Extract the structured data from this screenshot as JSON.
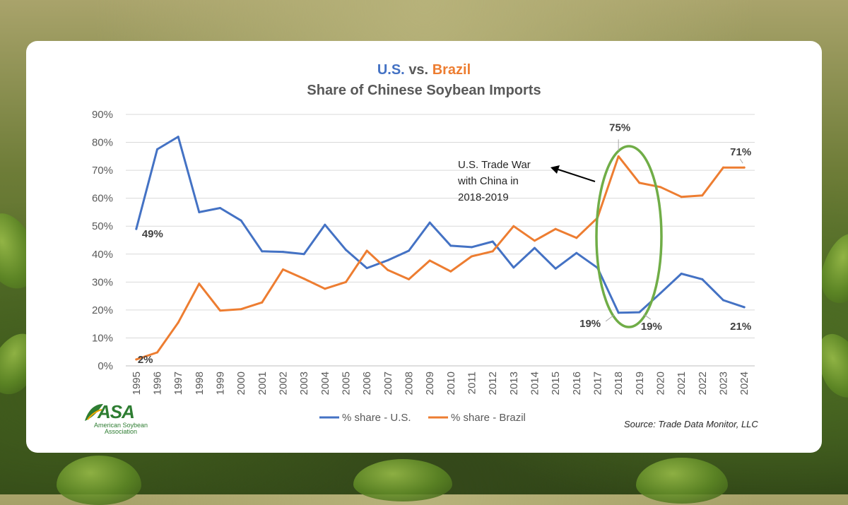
{
  "title_prefix": "U.S.",
  "title_vs": "vs.",
  "title_suffix": "Brazil",
  "subtitle": "Share of Chinese Soybean Imports",
  "colors": {
    "us": "#4472c4",
    "brazil": "#ed7d31",
    "highlight": "#70ad47",
    "text": "#595959"
  },
  "chart_data": {
    "type": "line",
    "title": "U.S. vs. Brazil",
    "subtitle": "Share of Chinese Soybean Imports",
    "x": [
      "1995",
      "1996",
      "1997",
      "1998",
      "1999",
      "2000",
      "2001",
      "2002",
      "2003",
      "2004",
      "2005",
      "2006",
      "2007",
      "2008",
      "2009",
      "2010",
      "2011",
      "2012",
      "2013",
      "2014",
      "2015",
      "2016",
      "2017",
      "2018",
      "2019",
      "2020",
      "2021",
      "2022",
      "2023",
      "2024"
    ],
    "ylim": [
      0,
      90
    ],
    "yticks": [
      "0%",
      "10%",
      "20%",
      "30%",
      "40%",
      "50%",
      "60%",
      "70%",
      "80%",
      "90%"
    ],
    "grid": true,
    "legend": "bottom",
    "series": [
      {
        "name": "% share - U.S.",
        "values": [
          49,
          77.5,
          82,
          55,
          56.5,
          52,
          41,
          40.8,
          40,
          50.5,
          41.5,
          35,
          37.8,
          41.2,
          51.3,
          43,
          42.5,
          44.5,
          35.2,
          42.2,
          34.8,
          40.4,
          35.1,
          19,
          19.2,
          26,
          33,
          31,
          23.5,
          21
        ]
      },
      {
        "name": "% share - Brazil",
        "values": [
          2.3,
          4.8,
          15.5,
          29.4,
          19.8,
          20.3,
          22.7,
          34.5,
          31.2,
          27.6,
          30,
          41.2,
          34.3,
          31,
          37.7,
          33.8,
          39.2,
          41,
          50,
          44.8,
          49,
          45.8,
          53,
          75,
          65.5,
          64,
          60.5,
          61,
          71,
          71
        ]
      }
    ],
    "data_labels": [
      {
        "text": "49%",
        "series": "% share - U.S.",
        "x": "1995"
      },
      {
        "text": "2%",
        "series": "% share - Brazil",
        "x": "1995"
      },
      {
        "text": "75%",
        "series": "% share - Brazil",
        "x": "2018"
      },
      {
        "text": "71%",
        "series": "% share - Brazil",
        "x": "2024"
      },
      {
        "text": "19%",
        "series": "% share - U.S.",
        "x": "2018"
      },
      {
        "text": "19%",
        "series": "% share - U.S.",
        "x": "2019"
      },
      {
        "text": "21%",
        "series": "% share - U.S.",
        "x": "2024"
      }
    ],
    "annotation": [
      "U.S. Trade War",
      "with China in",
      "2018-2019"
    ]
  },
  "logo": {
    "word": "ASA",
    "line1": "American Soybean",
    "line2": "Association"
  },
  "source": "Source: Trade Data Monitor, LLC"
}
